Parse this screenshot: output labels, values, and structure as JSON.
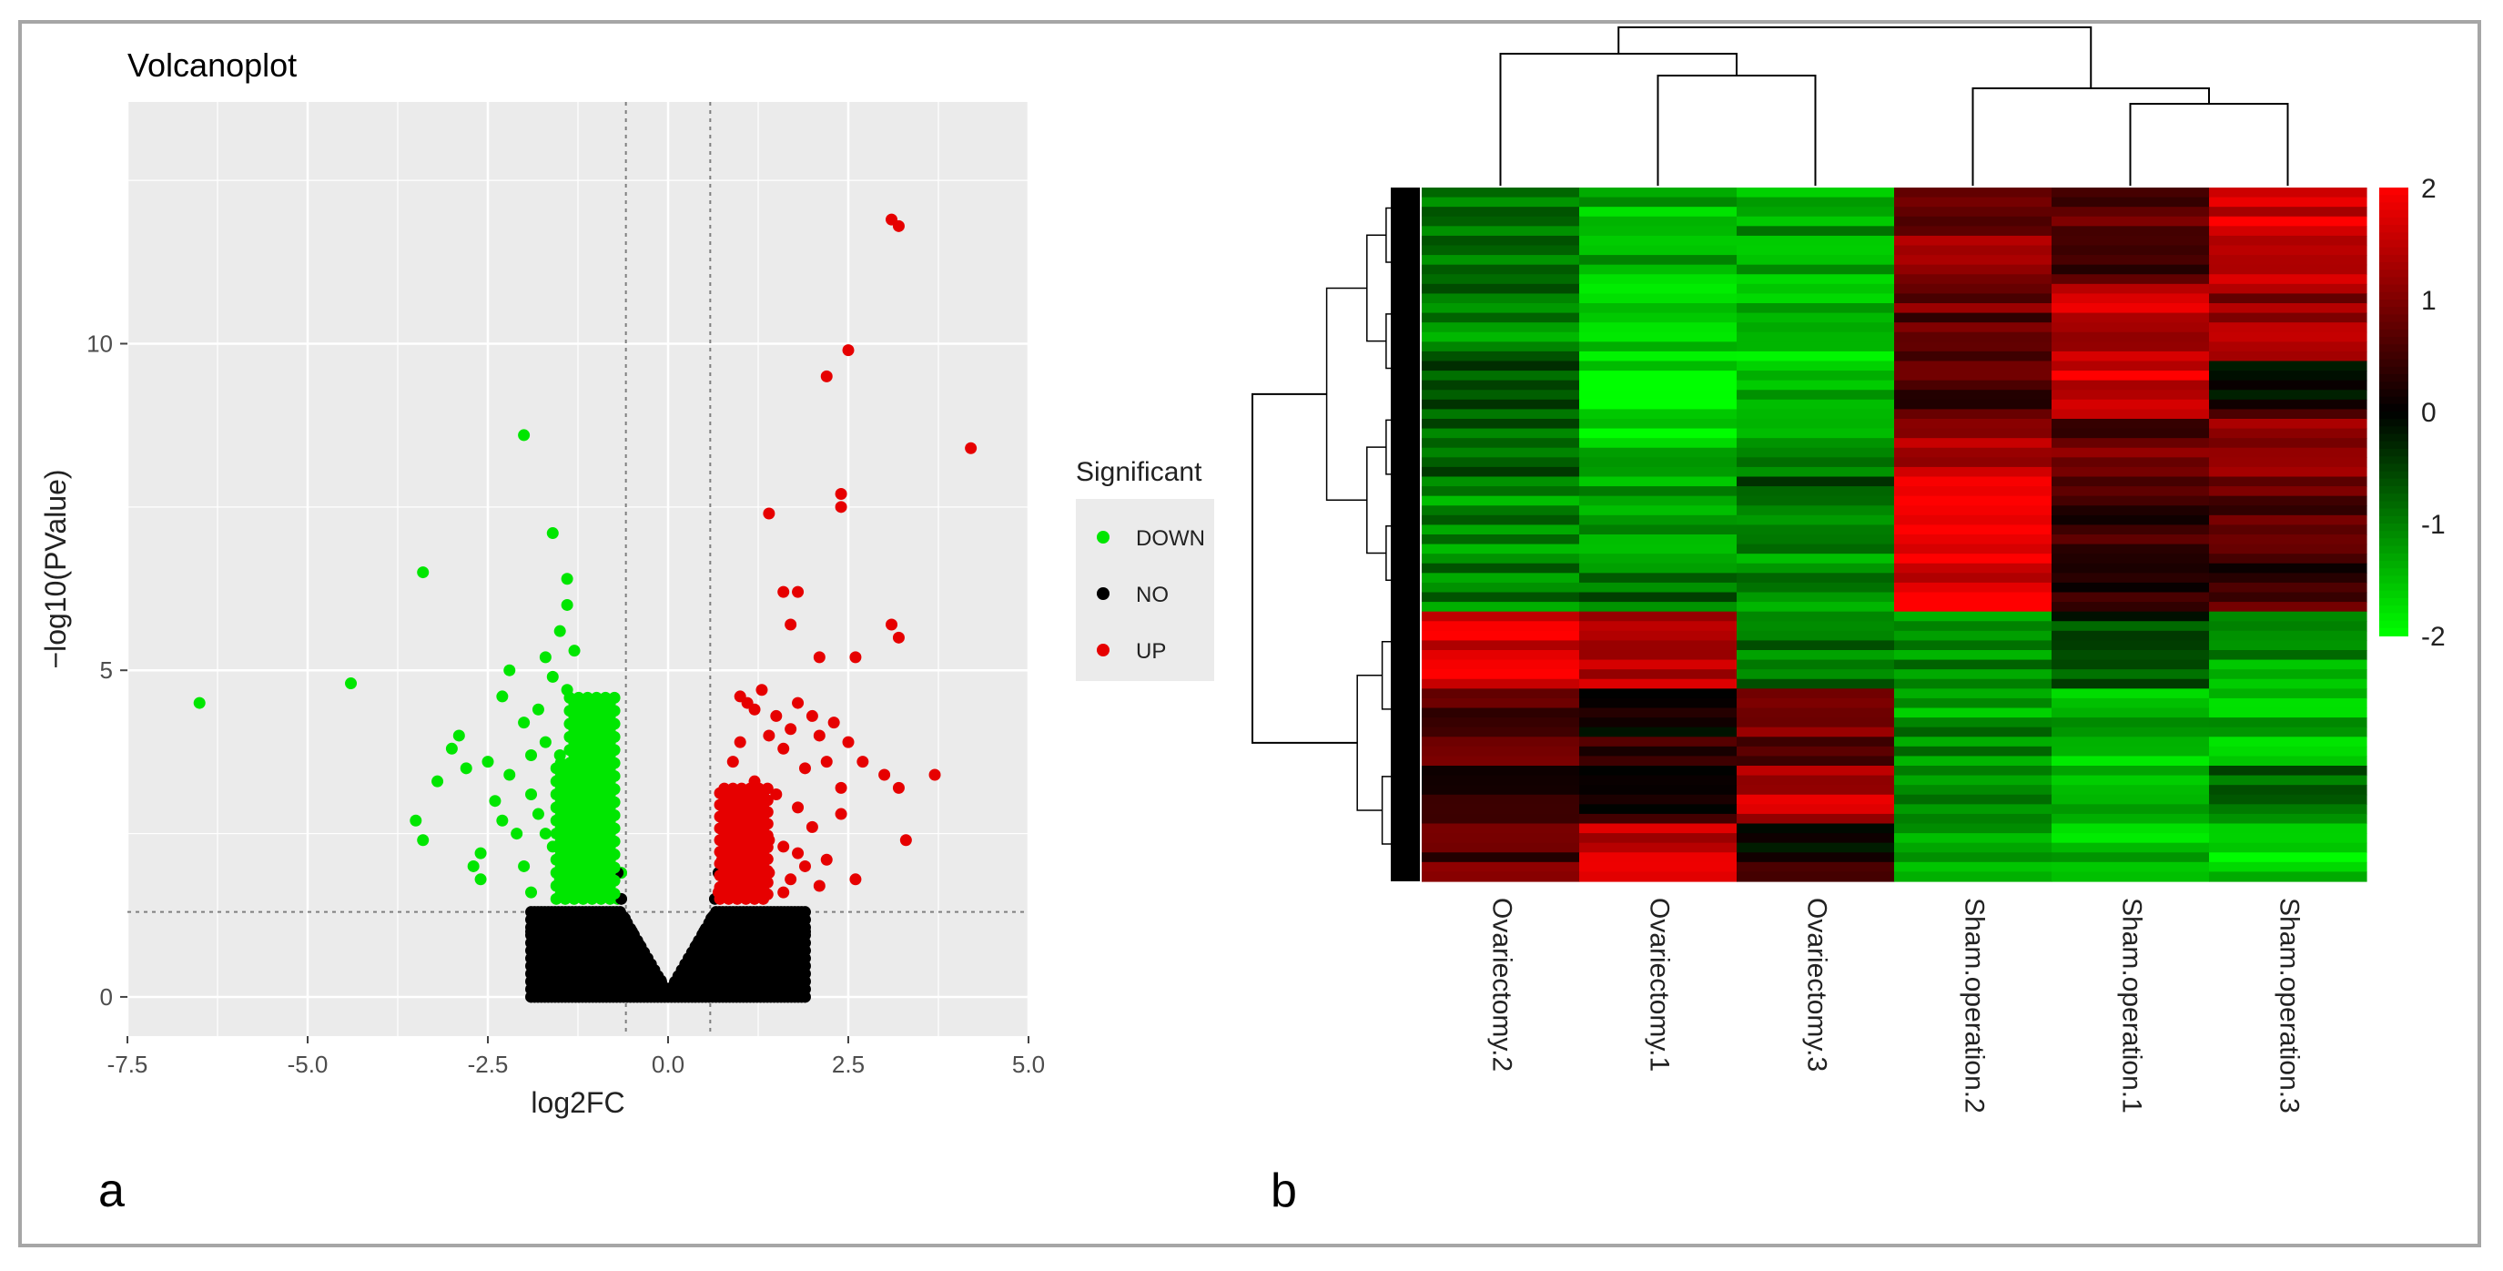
{
  "panel_labels": {
    "a": "a",
    "b": "b"
  },
  "colors": {
    "panel_bg": "#ebebeb",
    "grid": "#ffffff",
    "down": "#00e600",
    "no": "#000000",
    "up": "#e60000",
    "threshold": "#7f7f7f"
  },
  "chart_data": [
    {
      "type": "scatter",
      "title": "Volcanoplot",
      "xlabel": "log2FC",
      "ylabel": "−log10(PValue)",
      "xlim": [
        -7.5,
        5.0
      ],
      "ylim": [
        -0.6,
        13.7
      ],
      "x_ticks": [
        -7.5,
        -5.0,
        -2.5,
        0.0,
        2.5,
        5.0
      ],
      "x_tick_labels": [
        "-7.5",
        "-5.0",
        "-2.5",
        "0.0",
        "2.5",
        "5.0"
      ],
      "y_ticks": [
        0,
        5,
        10
      ],
      "y_tick_labels": [
        "0",
        "5",
        "10"
      ],
      "thresholds": {
        "log2fc": [
          -0.585,
          0.585
        ],
        "neg_log10_p": 1.3
      },
      "legend": {
        "title": "Significant",
        "placement": "right",
        "entries": [
          {
            "label": "DOWN",
            "color": "#00e600"
          },
          {
            "label": "NO",
            "color": "#000000"
          },
          {
            "label": "UP",
            "color": "#e60000"
          }
        ]
      },
      "series": [
        {
          "name": "DOWN",
          "color": "#00e600",
          "points": [
            [
              -6.5,
              4.5
            ],
            [
              -4.4,
              4.8
            ],
            [
              -3.4,
              6.5
            ],
            [
              -2.0,
              8.6
            ],
            [
              -1.6,
              7.1
            ],
            [
              -1.4,
              6.4
            ],
            [
              -1.4,
              6.0
            ],
            [
              -1.5,
              5.6
            ],
            [
              -3.5,
              2.7
            ],
            [
              -3.4,
              2.4
            ],
            [
              -3.2,
              3.3
            ],
            [
              -3.0,
              3.8
            ],
            [
              -2.9,
              4.0
            ],
            [
              -2.8,
              3.5
            ],
            [
              -2.7,
              2.0
            ],
            [
              -2.6,
              2.2
            ],
            [
              -2.5,
              3.6
            ],
            [
              -2.4,
              3.0
            ],
            [
              -2.3,
              4.6
            ],
            [
              -2.2,
              5.0
            ],
            [
              -2.2,
              3.4
            ],
            [
              -2.1,
              2.5
            ],
            [
              -2.0,
              2.0
            ],
            [
              -2.0,
              4.2
            ],
            [
              -1.9,
              3.7
            ],
            [
              -1.9,
              1.6
            ],
            [
              -1.8,
              4.4
            ],
            [
              -1.8,
              2.8
            ],
            [
              -1.7,
              3.9
            ],
            [
              -1.7,
              5.2
            ],
            [
              -1.6,
              2.3
            ],
            [
              -1.6,
              4.9
            ],
            [
              -1.5,
              3.1
            ],
            [
              -1.5,
              1.8
            ],
            [
              -1.4,
              4.7
            ],
            [
              -1.4,
              2.6
            ],
            [
              -1.3,
              5.3
            ],
            [
              -1.3,
              3.2
            ],
            [
              -1.3,
              1.6
            ],
            [
              -1.2,
              4.1
            ],
            [
              -1.2,
              2.9
            ],
            [
              -1.2,
              1.9
            ],
            [
              -1.1,
              3.6
            ],
            [
              -1.1,
              2.4
            ],
            [
              -1.1,
              4.3
            ],
            [
              -1.0,
              3.0
            ],
            [
              -1.0,
              1.7
            ],
            [
              -1.0,
              2.2
            ],
            [
              -0.95,
              2.7
            ],
            [
              -0.9,
              1.9
            ],
            [
              -0.9,
              3.4
            ],
            [
              -0.85,
              2.1
            ],
            [
              -0.8,
              1.6
            ],
            [
              -0.75,
              1.8
            ],
            [
              -0.7,
              1.5
            ],
            [
              -0.65,
              1.9
            ],
            [
              -2.6,
              1.8
            ],
            [
              -2.3,
              2.7
            ],
            [
              -1.9,
              3.1
            ],
            [
              -1.7,
              2.5
            ],
            [
              -1.5,
              3.7
            ],
            [
              -1.3,
              2.1
            ],
            [
              -1.2,
              3.5
            ],
            [
              -1.0,
              2.6
            ]
          ]
        },
        {
          "name": "NO",
          "color": "#000000",
          "points": [
            [
              -1.6,
              1.1
            ],
            [
              -1.4,
              0.9
            ],
            [
              -1.3,
              1.2
            ],
            [
              -1.2,
              0.7
            ],
            [
              -1.1,
              1.0
            ],
            [
              -1.0,
              0.8
            ],
            [
              -0.9,
              1.2
            ],
            [
              -0.9,
              0.5
            ],
            [
              -0.8,
              1.0
            ],
            [
              -0.8,
              0.6
            ],
            [
              -0.7,
              1.9
            ],
            [
              -0.7,
              0.8
            ],
            [
              -0.65,
              1.5
            ],
            [
              -0.6,
              1.2
            ],
            [
              -0.55,
              0.9
            ],
            [
              -0.5,
              1.0
            ],
            [
              -0.5,
              0.5
            ],
            [
              -0.45,
              0.7
            ],
            [
              -0.4,
              0.8
            ],
            [
              -0.35,
              0.5
            ],
            [
              -0.3,
              0.6
            ],
            [
              -0.25,
              0.35
            ],
            [
              -0.2,
              0.4
            ],
            [
              -0.15,
              0.2
            ],
            [
              -0.1,
              0.25
            ],
            [
              -0.05,
              0.1
            ],
            [
              0.0,
              0.05
            ],
            [
              0.05,
              0.12
            ],
            [
              0.1,
              0.2
            ],
            [
              0.15,
              0.25
            ],
            [
              0.2,
              0.4
            ],
            [
              0.25,
              0.35
            ],
            [
              0.3,
              0.6
            ],
            [
              0.35,
              0.5
            ],
            [
              0.4,
              0.8
            ],
            [
              0.45,
              0.7
            ],
            [
              0.5,
              1.0
            ],
            [
              0.5,
              0.5
            ],
            [
              0.55,
              0.9
            ],
            [
              0.6,
              1.2
            ],
            [
              0.65,
              1.5
            ],
            [
              0.7,
              1.9
            ],
            [
              0.7,
              0.8
            ],
            [
              0.8,
              1.0
            ],
            [
              0.8,
              0.6
            ],
            [
              0.9,
              1.2
            ],
            [
              0.9,
              0.5
            ],
            [
              1.0,
              0.8
            ],
            [
              1.1,
              1.0
            ],
            [
              1.2,
              0.7
            ],
            [
              1.3,
              1.2
            ],
            [
              1.4,
              0.9
            ],
            [
              1.6,
              1.1
            ],
            [
              1.8,
              1.2
            ],
            [
              -1.8,
              1.2
            ],
            [
              0.6,
              0.3
            ],
            [
              -0.6,
              0.3
            ],
            [
              0.3,
              0.15
            ],
            [
              -0.3,
              0.15
            ],
            [
              1.5,
              0.6
            ],
            [
              -1.5,
              0.6
            ],
            [
              1.9,
              1.0
            ],
            [
              -1.9,
              1.0
            ],
            [
              0.75,
              0.4
            ],
            [
              -0.75,
              0.4
            ]
          ]
        },
        {
          "name": "UP",
          "color": "#e60000",
          "points": [
            [
              3.1,
              11.9
            ],
            [
              3.2,
              11.8
            ],
            [
              2.5,
              9.9
            ],
            [
              2.2,
              9.5
            ],
            [
              4.2,
              8.4
            ],
            [
              2.4,
              7.7
            ],
            [
              2.4,
              7.5
            ],
            [
              1.4,
              7.4
            ],
            [
              1.6,
              6.2
            ],
            [
              1.8,
              6.2
            ],
            [
              1.7,
              5.7
            ],
            [
              3.1,
              5.7
            ],
            [
              3.2,
              5.5
            ],
            [
              2.6,
              5.2
            ],
            [
              2.1,
              5.2
            ],
            [
              1.0,
              4.6
            ],
            [
              1.1,
              4.5
            ],
            [
              1.2,
              4.4
            ],
            [
              1.3,
              4.7
            ],
            [
              1.4,
              4.0
            ],
            [
              1.5,
              4.3
            ],
            [
              1.6,
              3.8
            ],
            [
              1.7,
              4.1
            ],
            [
              1.8,
              4.5
            ],
            [
              1.9,
              3.5
            ],
            [
              2.0,
              4.3
            ],
            [
              2.1,
              4.0
            ],
            [
              2.2,
              3.6
            ],
            [
              2.3,
              4.2
            ],
            [
              2.4,
              3.2
            ],
            [
              2.5,
              3.9
            ],
            [
              2.7,
              3.6
            ],
            [
              3.0,
              3.4
            ],
            [
              3.2,
              3.2
            ],
            [
              3.7,
              3.4
            ],
            [
              3.3,
              2.4
            ],
            [
              2.6,
              1.8
            ],
            [
              2.4,
              2.8
            ],
            [
              2.2,
              2.1
            ],
            [
              2.0,
              2.6
            ],
            [
              1.9,
              2.0
            ],
            [
              1.8,
              2.9
            ],
            [
              1.7,
              1.8
            ],
            [
              1.6,
              2.3
            ],
            [
              1.5,
              3.1
            ],
            [
              1.4,
              1.9
            ],
            [
              1.3,
              2.6
            ],
            [
              1.2,
              3.3
            ],
            [
              1.1,
              2.2
            ],
            [
              1.0,
              1.7
            ],
            [
              0.95,
              2.9
            ],
            [
              0.9,
              2.4
            ],
            [
              0.85,
              1.8
            ],
            [
              0.8,
              3.0
            ],
            [
              0.75,
              2.1
            ],
            [
              0.7,
              1.6
            ],
            [
              0.9,
              3.6
            ],
            [
              1.0,
              3.9
            ],
            [
              1.2,
              1.7
            ],
            [
              1.4,
              2.4
            ],
            [
              1.6,
              1.6
            ],
            [
              1.8,
              2.2
            ],
            [
              2.1,
              1.7
            ],
            [
              0.8,
              2.6
            ]
          ]
        }
      ]
    },
    {
      "type": "heatmap",
      "title": "",
      "columns": [
        "Ovariectomy.2",
        "Ovariectomy.1",
        "Ovariectomy.3",
        "Sham.operation.2",
        "Sham.operation.1",
        "Sham.operation.3"
      ],
      "color_scale": {
        "min": -2,
        "max": 2,
        "low": "#00ff00",
        "mid": "#000000",
        "high": "#ff0000"
      },
      "colorbar_ticks": [
        2,
        1,
        0,
        -1,
        -2
      ],
      "colorbar_tick_labels": [
        "2",
        "1",
        "0",
        "-1",
        "-2"
      ],
      "column_dendrogram": [
        [
          1,
          2
        ],
        [
          0,
          6
        ],
        [
          4,
          5
        ],
        [
          3,
          8
        ],
        [
          7,
          9
        ]
      ],
      "blocks": [
        {
          "rows": 10,
          "values": [
            -0.8,
            -1.4,
            -1.3,
            1.0,
            0.6,
            1.6
          ]
        },
        {
          "rows": 8,
          "values": [
            -1.0,
            -1.7,
            -1.5,
            0.8,
            1.5,
            1.1
          ]
        },
        {
          "rows": 6,
          "values": [
            -0.5,
            -1.8,
            -1.4,
            0.6,
            1.7,
            0.2
          ]
        },
        {
          "rows": 6,
          "values": [
            -0.7,
            -1.6,
            -1.2,
            1.2,
            0.8,
            1.0
          ]
        },
        {
          "rows": 8,
          "values": [
            -1.1,
            -1.2,
            -0.8,
            1.9,
            0.4,
            0.8
          ]
        },
        {
          "rows": 6,
          "values": [
            -1.0,
            -0.9,
            -1.1,
            1.8,
            0.3,
            0.5
          ]
        },
        {
          "rows": 8,
          "values": [
            1.7,
            1.3,
            -0.9,
            -1.1,
            -0.5,
            -1.2
          ]
        },
        {
          "rows": 8,
          "values": [
            0.8,
            0.3,
            0.9,
            -1.2,
            -1.5,
            -1.4
          ]
        },
        {
          "rows": 6,
          "values": [
            0.5,
            0.2,
            1.5,
            -1.0,
            -1.3,
            -0.9
          ]
        },
        {
          "rows": 6,
          "values": [
            0.7,
            1.6,
            0.2,
            -1.3,
            -1.4,
            -1.6
          ]
        }
      ]
    }
  ]
}
